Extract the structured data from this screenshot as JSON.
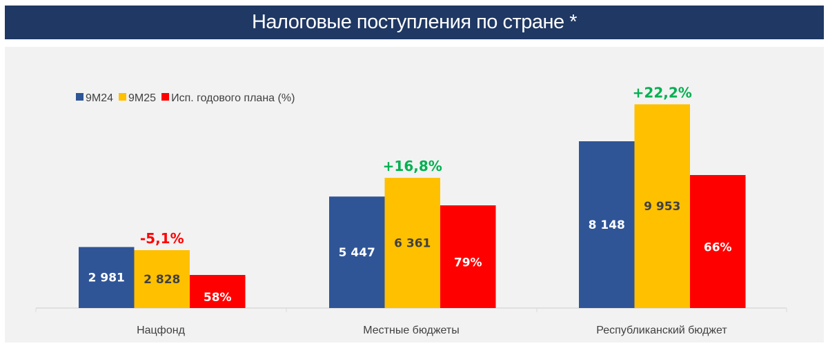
{
  "header": {
    "title": "Налоговые поступления по стране *"
  },
  "chart_data": {
    "type": "bar",
    "title": "Налоговые поступления по стране *",
    "categories": [
      "Нацфонд",
      "Местные бюджеты",
      "Республиканский бюджет"
    ],
    "series": [
      {
        "name": "9M24",
        "values": [
          2981,
          5447,
          8148
        ],
        "labels": [
          "2 981",
          "5 447",
          "8 148"
        ],
        "color": "#2F5597"
      },
      {
        "name": "9M25",
        "values": [
          2828,
          6361,
          9953
        ],
        "labels": [
          "2 828",
          "6 361",
          "9 953"
        ],
        "color": "#FFC000"
      },
      {
        "name": "Исп. годового плана (%)",
        "values": [
          58,
          79,
          66
        ],
        "labels": [
          "58%",
          "79%",
          "66%"
        ],
        "color": "#FF0000"
      }
    ],
    "changes": [
      {
        "label": "-5,1%",
        "color": "#FF0000"
      },
      {
        "label": "+16,8%",
        "color": "#00B050"
      },
      {
        "label": "+22,2%",
        "color": "#00B050"
      }
    ],
    "legend_position": "top-left",
    "grid": false,
    "xlabel": "",
    "ylabel": ""
  }
}
